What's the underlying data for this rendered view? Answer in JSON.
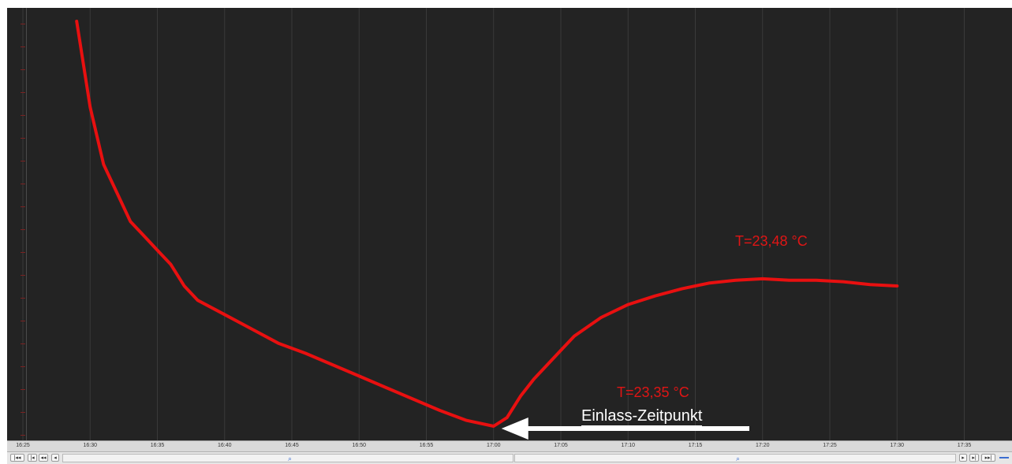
{
  "chart_data": {
    "type": "line",
    "x_ticks": [
      "16:25",
      "16:30",
      "16:35",
      "16:40",
      "16:45",
      "16:50",
      "16:55",
      "17:00",
      "17:05",
      "17:10",
      "17:15",
      "17:20",
      "17:25",
      "17:30",
      "17:35"
    ],
    "series": [
      {
        "color": "#e81010",
        "points": [
          [
            "16:29",
            23.66
          ],
          [
            "16:30",
            23.6
          ],
          [
            "16:31",
            23.56
          ],
          [
            "16:32",
            23.54
          ],
          [
            "16:33",
            23.52
          ],
          [
            "16:34",
            23.51
          ],
          [
            "16:35",
            23.5
          ],
          [
            "16:36",
            23.49
          ],
          [
            "16:37",
            23.475
          ],
          [
            "16:38",
            23.465
          ],
          [
            "16:40",
            23.455
          ],
          [
            "16:42",
            23.445
          ],
          [
            "16:44",
            23.435
          ],
          [
            "16:46",
            23.428
          ],
          [
            "16:48",
            23.42
          ],
          [
            "16:50",
            23.412
          ],
          [
            "16:52",
            23.404
          ],
          [
            "16:54",
            23.396
          ],
          [
            "16:56",
            23.388
          ],
          [
            "16:58",
            23.381
          ],
          [
            "17:00",
            23.377
          ],
          [
            "17:01",
            23.383
          ],
          [
            "17:02",
            23.398
          ],
          [
            "17:03",
            23.41
          ],
          [
            "17:04",
            23.42
          ],
          [
            "17:05",
            23.43
          ],
          [
            "17:06",
            23.44
          ],
          [
            "17:08",
            23.453
          ],
          [
            "17:10",
            23.462
          ],
          [
            "17:12",
            23.468
          ],
          [
            "17:14",
            23.473
          ],
          [
            "17:16",
            23.477
          ],
          [
            "17:18",
            23.479
          ],
          [
            "17:20",
            23.48
          ],
          [
            "17:22",
            23.479
          ],
          [
            "17:24",
            23.479
          ],
          [
            "17:26",
            23.478
          ],
          [
            "17:28",
            23.476
          ],
          [
            "17:30",
            23.475
          ]
        ]
      }
    ],
    "annotations": {
      "max_label": "T=23,48 °C",
      "min_label": "T=23,35 °C",
      "arrow_label": "Einlass-Zeitpunkt"
    },
    "grid": true
  },
  "navigation": {
    "first_label": "|◂◂",
    "prev_page_label": "|◂",
    "prev_fast_label": "◂◂",
    "prev_label": "◂",
    "next_label": "▸",
    "next_fast_label": "▸|",
    "last_label": "▸▸|",
    "zoom_left_icon": "zoom-icon",
    "zoom_right_icon": "zoom-icon"
  }
}
